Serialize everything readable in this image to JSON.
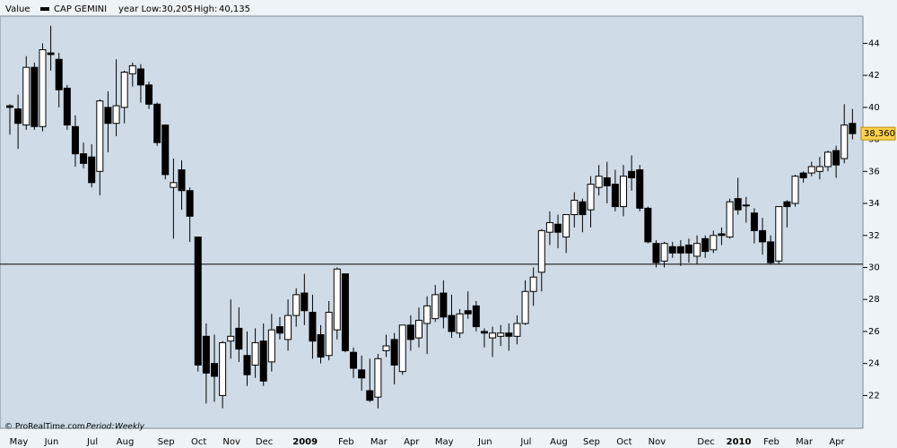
{
  "chart_data": {
    "type": "candlestick",
    "panel_label": "Value",
    "series_name": "CAP GEMINI",
    "year_low": {
      "value": 30.205,
      "label": "30,205"
    },
    "year_low_label": "year Low:",
    "year_high": {
      "value": 40.135,
      "label": "40,135"
    },
    "year_high_label": "High:",
    "last_price": {
      "value": 38.36,
      "label": "38,360"
    },
    "footer_source": "© ProRealTime.com",
    "footer_period_label": "Period:",
    "footer_period": "Weekly",
    "up_color": "#ffffff",
    "down_color": "#000000",
    "ylim": [
      20.4,
      45.7
    ],
    "yticks": [
      22,
      24,
      26,
      28,
      30,
      32,
      34,
      36,
      38,
      40,
      42,
      44
    ],
    "months": [
      {
        "label": "May",
        "candles": [
          [
            40.1,
            40.2,
            38.3,
            40.0
          ],
          [
            39.9,
            40.8,
            37.4,
            39.0
          ],
          [
            38.9,
            43.2,
            38.6,
            42.5
          ],
          [
            42.5,
            42.8,
            38.6,
            38.8
          ]
        ]
      },
      {
        "label": "Jun",
        "candles": [
          [
            38.8,
            44.0,
            38.5,
            43.6
          ],
          [
            43.4,
            45.1,
            42.3,
            43.3
          ],
          [
            43.0,
            43.4,
            40.0,
            41.1
          ],
          [
            41.2,
            41.4,
            38.6,
            38.9
          ],
          [
            38.8,
            39.5,
            36.3,
            37.1
          ]
        ]
      },
      {
        "label": "Jul",
        "candles": [
          [
            37.1,
            37.8,
            36.2,
            36.5
          ],
          [
            36.9,
            37.7,
            35.0,
            35.3
          ],
          [
            36.0,
            40.5,
            34.5,
            40.4
          ],
          [
            40.0,
            41.0,
            37.2,
            39.0
          ]
        ]
      },
      {
        "label": "Aug",
        "candles": [
          [
            39.0,
            43.0,
            38.2,
            40.1
          ],
          [
            40.0,
            42.3,
            39.0,
            42.2
          ],
          [
            42.1,
            42.8,
            41.3,
            42.6
          ],
          [
            42.4,
            42.7,
            40.3,
            41.4
          ],
          [
            41.4,
            41.6,
            39.9,
            40.2
          ]
        ]
      },
      {
        "label": "Sep",
        "candles": [
          [
            40.2,
            40.3,
            37.6,
            37.8
          ],
          [
            38.9,
            38.9,
            35.5,
            35.8
          ],
          [
            35.0,
            36.8,
            31.8,
            35.3
          ],
          [
            36.1,
            36.7,
            33.6,
            34.8
          ]
        ]
      },
      {
        "label": "Oct",
        "candles": [
          [
            34.8,
            35.0,
            31.6,
            33.2
          ],
          [
            31.9,
            31.9,
            23.5,
            23.9
          ],
          [
            25.7,
            26.5,
            21.5,
            23.4
          ],
          [
            24.0,
            25.8,
            21.6,
            23.2
          ]
        ]
      },
      {
        "label": "Nov",
        "candles": [
          [
            22.0,
            25.4,
            21.2,
            25.3
          ],
          [
            25.4,
            28.0,
            24.3,
            25.7
          ],
          [
            26.2,
            27.5,
            24.1,
            24.9
          ],
          [
            24.5,
            26.0,
            22.6,
            23.3
          ]
        ]
      },
      {
        "label": "Dec",
        "candles": [
          [
            23.9,
            26.2,
            23.1,
            25.3
          ],
          [
            25.4,
            26.5,
            22.6,
            22.9
          ],
          [
            24.1,
            27.1,
            23.5,
            26.1
          ],
          [
            26.3,
            26.9,
            25.5,
            25.9
          ],
          [
            25.5,
            28.0,
            24.8,
            27.0
          ]
        ]
      },
      {
        "label": "2009",
        "candles": [
          [
            27.0,
            28.7,
            26.3,
            28.3
          ],
          [
            28.4,
            29.6,
            26.4,
            27.3
          ],
          [
            27.2,
            28.3,
            24.3,
            25.4
          ],
          [
            25.8,
            26.4,
            24.0,
            24.4
          ],
          [
            24.5,
            27.9,
            24.2,
            27.2
          ]
        ]
      },
      {
        "label": "Feb",
        "candles": [
          [
            26.1,
            30.0,
            25.5,
            29.9
          ],
          [
            29.6,
            29.6,
            24.7,
            24.8
          ],
          [
            24.7,
            25.0,
            23.1,
            23.7
          ],
          [
            23.6,
            24.5,
            22.3,
            23.1
          ]
        ]
      },
      {
        "label": "Mar",
        "candles": [
          [
            22.3,
            24.3,
            21.6,
            21.7
          ],
          [
            21.9,
            24.6,
            21.2,
            24.3
          ],
          [
            24.8,
            25.8,
            24.4,
            25.1
          ],
          [
            25.5,
            25.9,
            22.7,
            23.9
          ]
        ]
      },
      {
        "label": "Apr",
        "candles": [
          [
            23.5,
            26.4,
            23.3,
            26.4
          ],
          [
            26.4,
            27.0,
            24.8,
            25.5
          ],
          [
            25.6,
            27.5,
            25.0,
            26.7
          ],
          [
            26.5,
            28.2,
            24.6,
            27.6
          ]
        ]
      },
      {
        "label": "May",
        "candles": [
          [
            26.8,
            28.9,
            26.6,
            28.3
          ],
          [
            28.4,
            29.2,
            26.2,
            26.9
          ],
          [
            27.0,
            28.3,
            25.6,
            26.0
          ],
          [
            25.9,
            27.4,
            25.6,
            27.1
          ],
          [
            27.3,
            28.5,
            26.8,
            27.1
          ]
        ]
      },
      {
        "label": "Jun",
        "candles": [
          [
            27.6,
            27.9,
            26.0,
            26.3
          ],
          [
            26.0,
            26.2,
            25.0,
            25.9
          ],
          [
            25.6,
            26.3,
            24.4,
            25.9
          ],
          [
            25.7,
            26.4,
            25.1,
            25.9
          ],
          [
            25.9,
            26.5,
            24.8,
            25.7
          ]
        ]
      },
      {
        "label": "Jul",
        "candles": [
          [
            25.7,
            27.0,
            25.2,
            26.5
          ],
          [
            26.5,
            29.2,
            26.4,
            28.5
          ],
          [
            28.5,
            30.0,
            27.6,
            29.4
          ],
          [
            29.7,
            32.4,
            28.5,
            32.3
          ]
        ]
      },
      {
        "label": "Aug",
        "candles": [
          [
            32.2,
            33.5,
            31.4,
            32.8
          ],
          [
            32.7,
            33.3,
            31.2,
            32.2
          ],
          [
            31.9,
            33.3,
            30.9,
            33.3
          ],
          [
            33.3,
            34.7,
            32.5,
            34.2
          ]
        ]
      },
      {
        "label": "Sep",
        "candles": [
          [
            34.1,
            34.3,
            32.2,
            33.3
          ],
          [
            33.6,
            35.7,
            32.5,
            35.2
          ],
          [
            35.0,
            36.4,
            34.5,
            35.7
          ],
          [
            35.6,
            36.6,
            34.0,
            35.1
          ]
        ]
      },
      {
        "label": "Oct",
        "candles": [
          [
            35.2,
            36.1,
            33.5,
            33.8
          ],
          [
            33.8,
            36.4,
            33.2,
            35.7
          ],
          [
            36.0,
            37.0,
            34.8,
            35.6
          ],
          [
            36.1,
            36.4,
            33.5,
            33.7
          ]
        ]
      },
      {
        "label": "Nov",
        "candles": [
          [
            33.7,
            33.8,
            31.5,
            31.6
          ],
          [
            31.5,
            31.7,
            30.0,
            30.3
          ],
          [
            30.4,
            31.6,
            30.0,
            31.5
          ],
          [
            31.3,
            31.6,
            30.6,
            30.9
          ],
          [
            31.3,
            31.7,
            30.1,
            30.9
          ],
          [
            31.4,
            31.8,
            30.3,
            30.9
          ]
        ]
      },
      {
        "label": "Dec",
        "candles": [
          [
            30.7,
            32.0,
            30.2,
            31.5
          ],
          [
            31.8,
            32.0,
            30.6,
            31.0
          ],
          [
            31.1,
            32.3,
            30.9,
            32.0
          ],
          [
            32.1,
            32.5,
            31.4,
            32.0
          ]
        ]
      },
      {
        "label": "2010",
        "candles": [
          [
            31.9,
            34.3,
            31.8,
            34.1
          ],
          [
            34.3,
            35.6,
            33.3,
            33.6
          ],
          [
            33.9,
            34.4,
            32.8,
            33.9
          ],
          [
            33.4,
            33.7,
            31.5,
            32.3
          ]
        ]
      },
      {
        "label": "Feb",
        "candles": [
          [
            32.3,
            33.1,
            30.8,
            31.6
          ],
          [
            31.6,
            32.0,
            30.2,
            30.3
          ],
          [
            30.4,
            33.8,
            30.2,
            33.8
          ],
          [
            34.1,
            34.2,
            32.5,
            33.8
          ]
        ]
      },
      {
        "label": "Mar",
        "candles": [
          [
            34.0,
            35.8,
            33.8,
            35.7
          ],
          [
            35.9,
            36.0,
            35.3,
            35.6
          ],
          [
            35.9,
            36.6,
            35.7,
            36.3
          ],
          [
            36.0,
            36.9,
            35.5,
            36.3
          ]
        ]
      },
      {
        "label": "Apr",
        "candles": [
          [
            36.3,
            37.3,
            36.0,
            37.2
          ],
          [
            37.3,
            37.6,
            35.6,
            36.4
          ],
          [
            36.8,
            40.2,
            36.5,
            38.9
          ],
          [
            39.0,
            39.9,
            38.0,
            38.36
          ]
        ]
      }
    ]
  }
}
